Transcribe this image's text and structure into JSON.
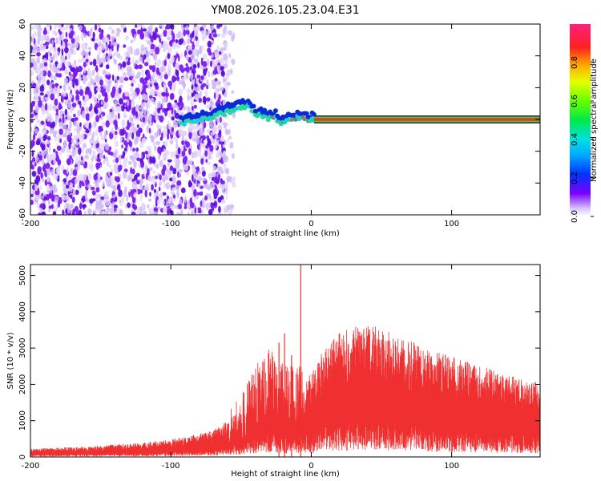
{
  "title": "YM08.2026.105.23.04.E31",
  "colors": {
    "snr_line": "#f03030",
    "scatter": "#8a2be2",
    "band": "#ff2a2a"
  },
  "chart_data": [
    {
      "type": "heatmap",
      "title": "",
      "xlabel": "Height of straight line (km)",
      "ylabel": "Frequency (Hz)",
      "xlim": [
        -200,
        163
      ],
      "ylim": [
        -60,
        60
      ],
      "x_ticks": [
        -200,
        -100,
        0,
        100
      ],
      "y_ticks": [
        -60,
        -40,
        -20,
        0,
        20,
        40,
        60
      ],
      "colorbar": {
        "label": "Normalized spectral amplitude",
        "range": [
          0,
          1
        ],
        "ticks": [
          "0.0",
          "0.2",
          "0.4",
          "0.6",
          "0.8"
        ]
      },
      "ridge": {
        "x": [
          -93,
          -85,
          -75,
          -65,
          -58,
          -52,
          -46,
          -40,
          -35,
          -30,
          -25,
          -20,
          -15,
          -10,
          -5,
          0,
          163
        ],
        "y": [
          -3,
          -2,
          1,
          3,
          5,
          7,
          9,
          4,
          2,
          1,
          1,
          -3,
          0,
          1,
          0,
          0,
          0
        ]
      },
      "grid": false
    },
    {
      "type": "line",
      "title": "",
      "xlabel": "Height of straight line (km)",
      "ylabel": "SNR (10 * v/v)",
      "xlim": [
        -200,
        163
      ],
      "ylim": [
        0,
        5300
      ],
      "x_ticks": [
        -200,
        -100,
        0,
        100
      ],
      "y_ticks": [
        0,
        1000,
        2000,
        3000,
        4000,
        5000
      ],
      "envelope": {
        "x": [
          -200,
          -160,
          -120,
          -90,
          -70,
          -60,
          -50,
          -40,
          -30,
          -20,
          -10,
          0,
          10,
          20,
          30,
          40,
          50,
          60,
          80,
          100,
          120,
          140,
          163
        ],
        "y": [
          220,
          270,
          380,
          520,
          700,
          950,
          1350,
          1900,
          2400,
          2000,
          1900,
          2200,
          2900,
          3250,
          3450,
          3500,
          3400,
          3200,
          2900,
          2650,
          2400,
          2150,
          1950
        ]
      },
      "spikes": [
        {
          "x": -7.5,
          "y": 5300
        },
        {
          "x": -19,
          "y": 3400
        },
        {
          "x": -23,
          "y": 3150
        },
        {
          "x": -14,
          "y": 2800
        }
      ],
      "grid": false
    }
  ]
}
